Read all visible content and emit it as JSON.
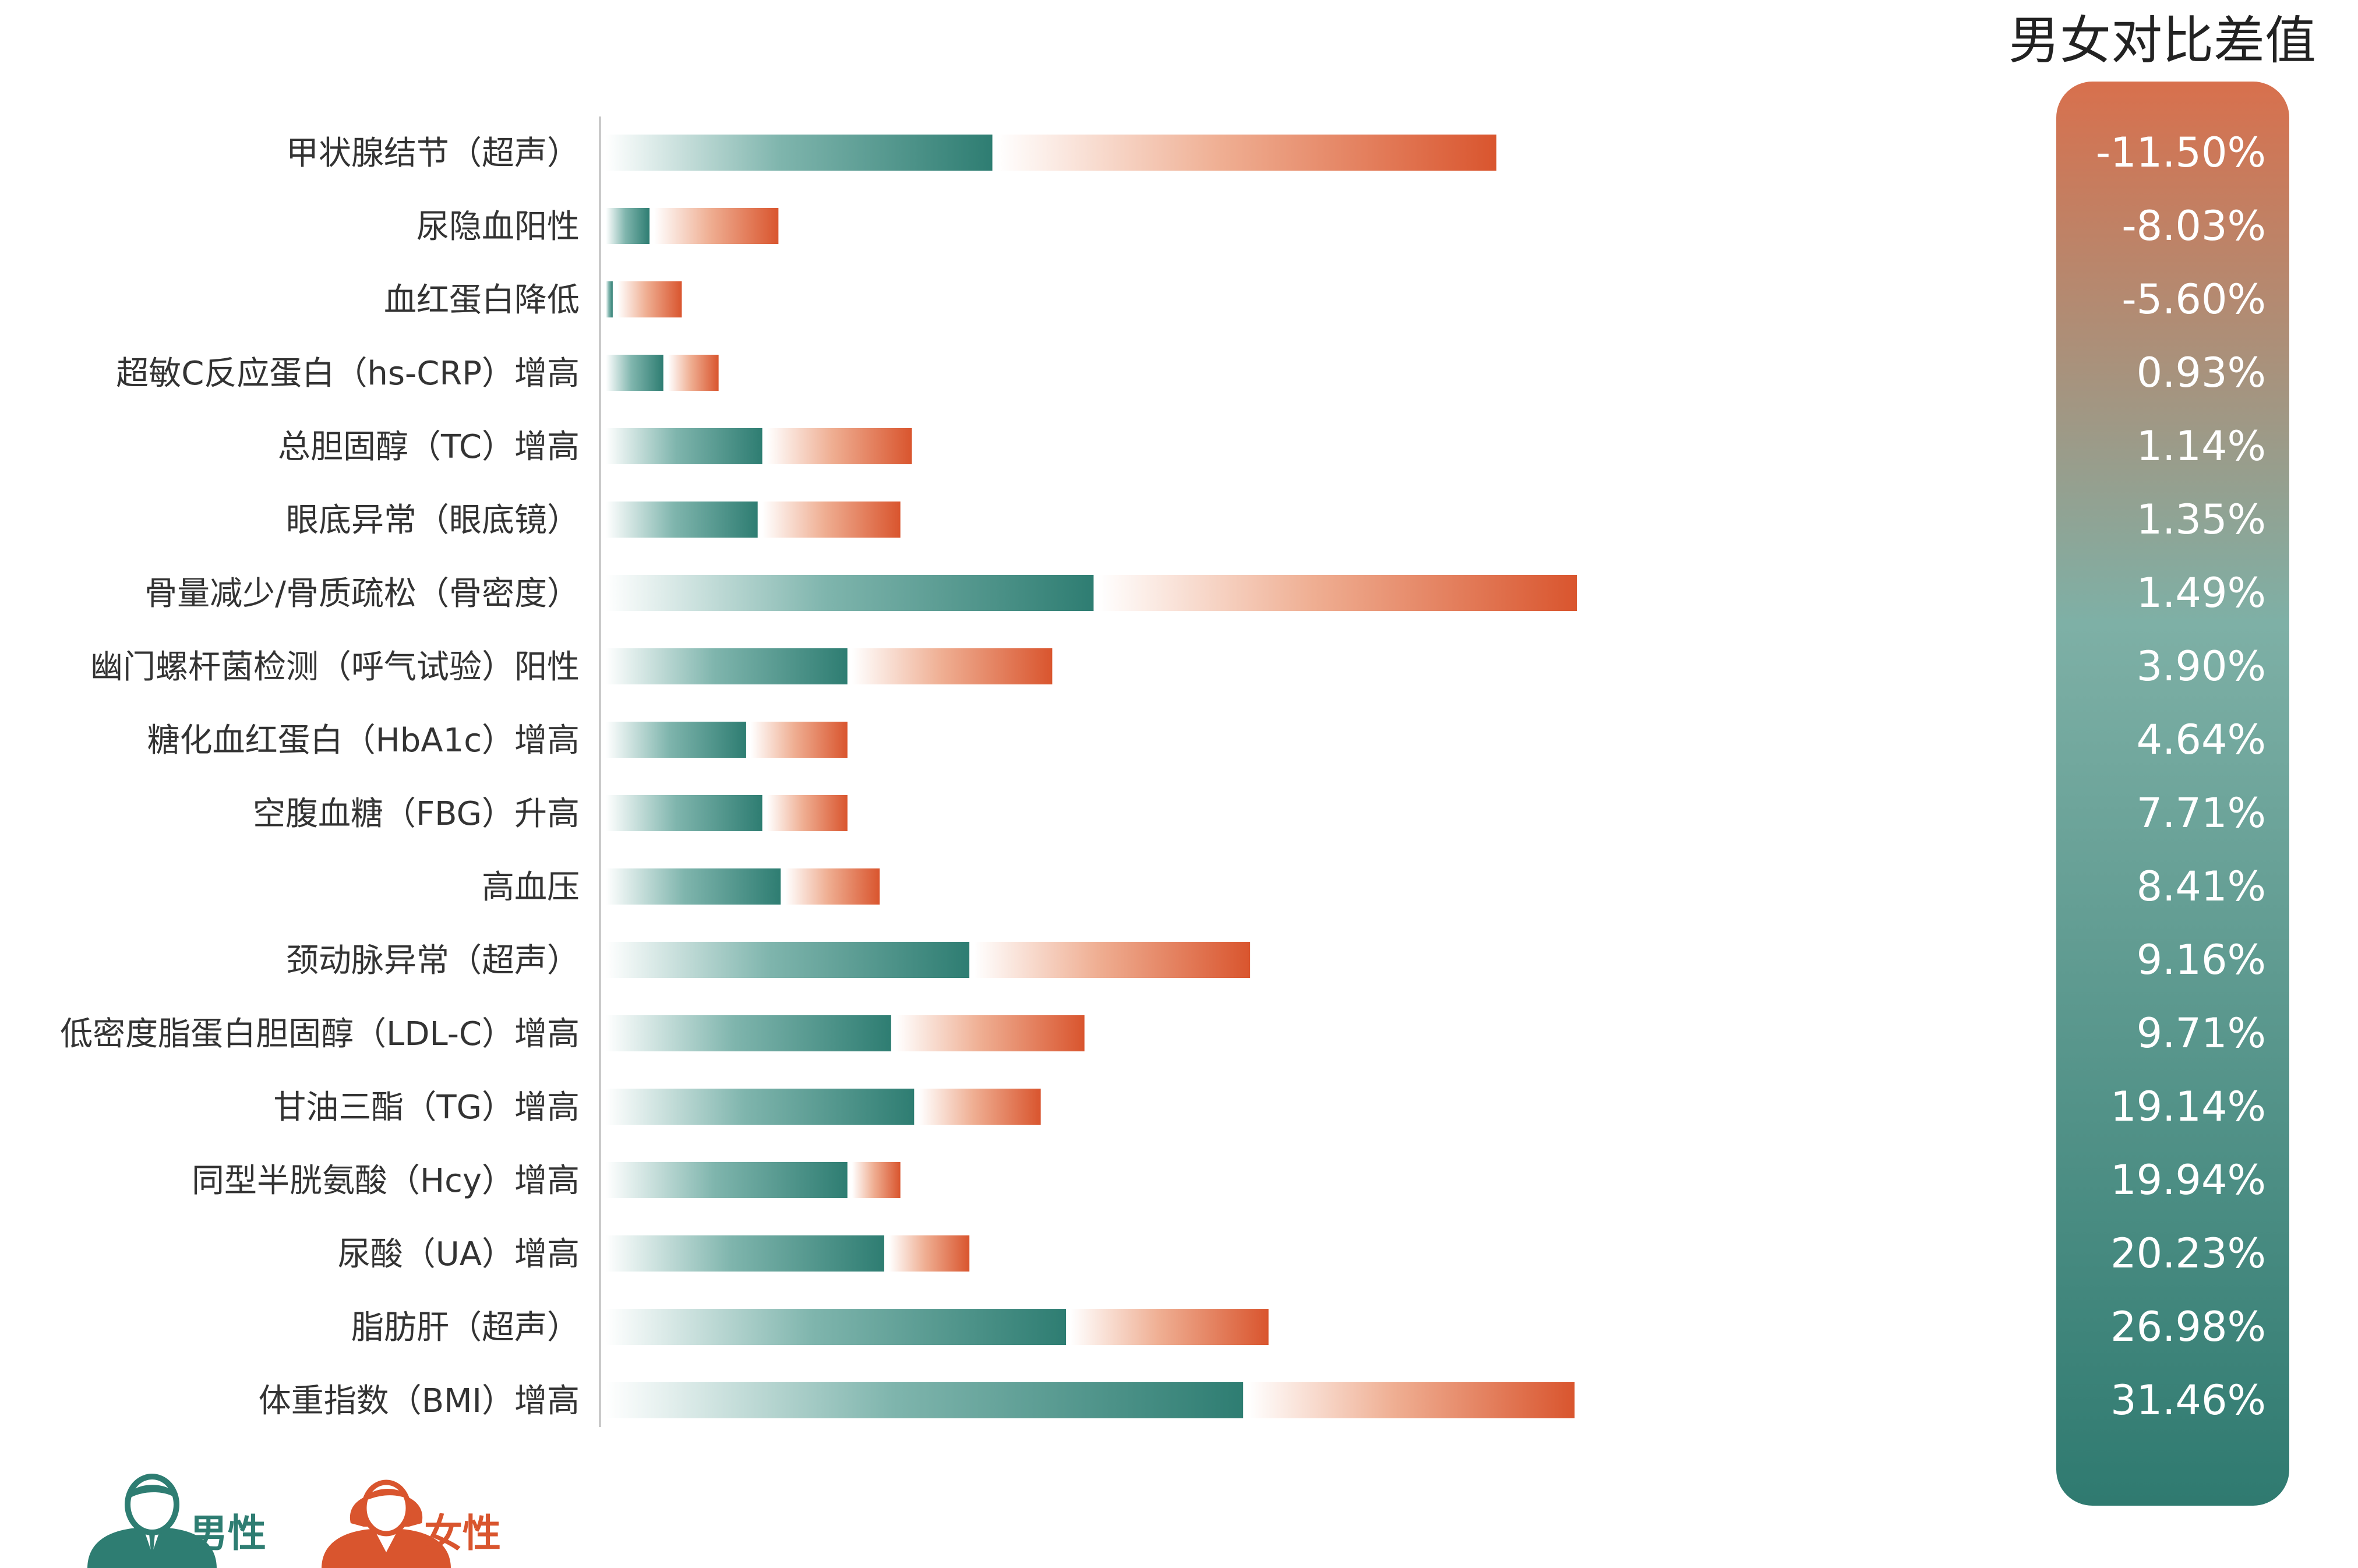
{
  "chart_data": {
    "type": "bar",
    "orientation": "horizontal",
    "stacked": true,
    "categories": [
      "甲状腺结节（超声）",
      "尿隐血阳性",
      "血红蛋白降低",
      "超敏C反应蛋白（hs-CRP）增高",
      "总胆固醇（TC）增高",
      "眼底异常（眼底镜）",
      "骨量减少/骨质疏松（骨密度）",
      "幽门螺杆菌检测（呼气试验）阳性",
      "糖化血红蛋白（HbA1c）增高",
      "空腹血糖（FBG）升高",
      "高血压",
      "颈动脉异常（超声）",
      "低密度脂蛋白胆固醇（LDL-C）增高",
      "甘油三酯（TG）增高",
      "同型半胱氨酸（Hcy）增高",
      "尿酸（UA）增高",
      "脂肪肝（超声）",
      "体重指数（BMI）增高"
    ],
    "series": [
      {
        "name": "男性",
        "color": "#2e7d72",
        "values": [
          16.8,
          1.9,
          0.3,
          2.5,
          6.8,
          6.6,
          21.2,
          10.5,
          6.1,
          6.8,
          7.6,
          15.8,
          12.4,
          13.4,
          10.5,
          12.1,
          20.0,
          27.7
        ]
      },
      {
        "name": "女性",
        "color": "#d9552e",
        "values": [
          21.7,
          5.4,
          2.8,
          2.2,
          6.3,
          6.0,
          20.8,
          8.7,
          4.2,
          3.5,
          4.1,
          12.0,
          8.2,
          5.3,
          2.1,
          3.5,
          8.6,
          14.2
        ]
      }
    ],
    "xlim": [
      0,
      50
    ],
    "grid": false,
    "legend": "bottom-left",
    "diff_panel": {
      "title": "男女对比差值",
      "values": [
        "-11.50%",
        "-8.03%",
        "-5.60%",
        "0.93%",
        "1.14%",
        "1.35%",
        "1.49%",
        "3.90%",
        "4.64%",
        "7.71%",
        "8.41%",
        "9.16%",
        "9.71%",
        "19.14%",
        "19.94%",
        "20.23%",
        "26.98%",
        "31.46%"
      ],
      "color_top": "#d8704d",
      "color_bottom": "#2f7a70"
    }
  },
  "legend": {
    "male_label": "男性",
    "female_label": "女性",
    "male_icon": "male-avatar-icon",
    "female_icon": "female-avatar-icon",
    "male_color": "#2e7d72",
    "female_color": "#d9552e"
  }
}
